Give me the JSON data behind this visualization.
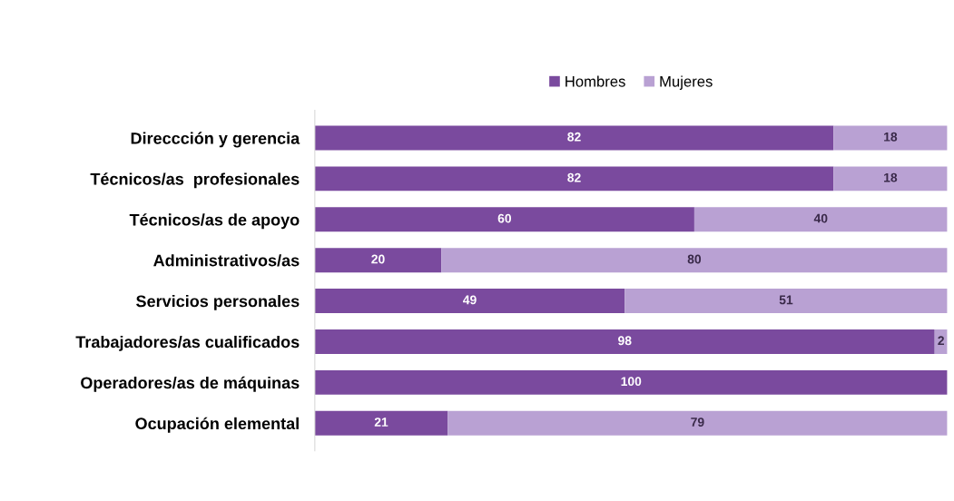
{
  "chart_data": {
    "type": "bar",
    "orientation": "horizontal",
    "stacked": true,
    "legend": "top",
    "categories": [
      "Direccción y gerencia",
      "Técnicos/as  profesionales",
      "Técnicos/as de apoyo",
      "Administrativos/as",
      "Servicios personales",
      "Trabajadores/as cualificados",
      "Operadores/as de máquinas",
      "Ocupación elemental"
    ],
    "series": [
      {
        "name": "Hombres",
        "color": "#7a4a9e",
        "values": [
          82,
          82,
          60,
          20,
          49,
          98,
          100,
          21
        ],
        "value_labels": [
          "82",
          "82",
          "60",
          "20",
          "49",
          "98",
          "100",
          "21"
        ]
      },
      {
        "name": "Mujeres",
        "color": "#b9a1d3",
        "values": [
          18,
          18,
          40,
          80,
          51,
          2,
          0,
          79
        ],
        "value_labels": [
          "18",
          "18",
          "40",
          "80",
          "51",
          "2",
          null,
          "79"
        ]
      }
    ]
  }
}
